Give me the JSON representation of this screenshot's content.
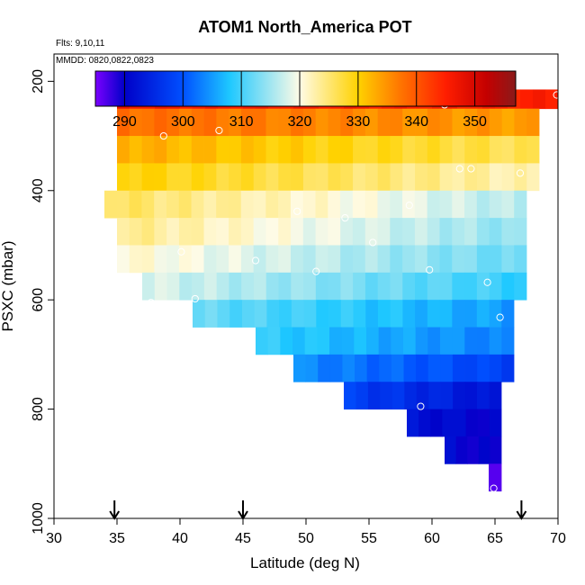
{
  "chart_data": {
    "type": "heatmap",
    "title": "ATOM1 North_America POT",
    "flights_note": "Flts: 9,10,11",
    "dates_note": "MMDD: 0820,0822,0823",
    "xlabel": "Latitude (deg N)",
    "ylabel": "PSXC (mbar)",
    "xlim": [
      30,
      70
    ],
    "ylim": [
      1000,
      150
    ],
    "y_reversed": true,
    "grid": false,
    "x_ticks": [
      "30",
      "35",
      "40",
      "45",
      "50",
      "55",
      "60",
      "65",
      "70"
    ],
    "y_ticks": [
      "200",
      "400",
      "600",
      "800",
      "1000"
    ],
    "colorbar": {
      "range": [
        285,
        357
      ],
      "ticks": [
        "290",
        "300",
        "310",
        "320",
        "330",
        "340",
        "350"
      ],
      "colors": [
        "#7b00ff",
        "#0000c8",
        "#0050ff",
        "#1ec8ff",
        "#fffbe6",
        "#ffd200",
        "#ff7800",
        "#ff1e00",
        "#c40000",
        "#8b1a1a"
      ],
      "color_stops": [
        285,
        290,
        300,
        308,
        320,
        330,
        337,
        345,
        352,
        357
      ]
    },
    "arrow_latitudes": [
      34.8,
      45.0,
      67.1
    ],
    "rows": [
      {
        "p_top": 185,
        "p_bot": 215,
        "lat_start": 35,
        "lat_end": 52,
        "v_start": 353,
        "v_end": 343
      },
      {
        "p_top": 215,
        "p_bot": 250,
        "lat_start": 35,
        "lat_end": 70,
        "v_start": 347,
        "v_end": 345
      },
      {
        "p_top": 250,
        "p_bot": 300,
        "lat_start": 35,
        "lat_end": 68.5,
        "v_start": 338,
        "v_end": 334
      },
      {
        "p_top": 300,
        "p_bot": 350,
        "lat_start": 35,
        "lat_end": 68.5,
        "v_start": 333,
        "v_end": 326
      },
      {
        "p_top": 350,
        "p_bot": 400,
        "lat_start": 35,
        "lat_end": 68.5,
        "v_start": 330,
        "v_end": 322
      },
      {
        "p_top": 400,
        "p_bot": 450,
        "lat_start": 34,
        "lat_end": 67.5,
        "v_start": 326,
        "v_end": 316
      },
      {
        "p_top": 450,
        "p_bot": 500,
        "lat_start": 35,
        "lat_end": 67.5,
        "v_start": 324,
        "v_end": 314
      },
      {
        "p_top": 500,
        "p_bot": 550,
        "lat_start": 35,
        "lat_end": 67.5,
        "v_start": 321,
        "v_end": 312
      },
      {
        "p_top": 550,
        "p_bot": 600,
        "lat_start": 37,
        "lat_end": 67.5,
        "v_start": 318,
        "v_end": 309
      },
      {
        "p_top": 600,
        "p_bot": 650,
        "lat_start": 41,
        "lat_end": 66.5,
        "v_start": 312,
        "v_end": 305
      },
      {
        "p_top": 650,
        "p_bot": 700,
        "lat_start": 46,
        "lat_end": 66.5,
        "v_start": 309,
        "v_end": 303
      },
      {
        "p_top": 700,
        "p_bot": 750,
        "lat_start": 49,
        "lat_end": 66.5,
        "v_start": 304,
        "v_end": 298
      },
      {
        "p_top": 750,
        "p_bot": 800,
        "lat_start": 53,
        "lat_end": 65.5,
        "v_start": 298,
        "v_end": 292
      },
      {
        "p_top": 800,
        "p_bot": 850,
        "lat_start": 58,
        "lat_end": 65.5,
        "v_start": 292,
        "v_end": 290
      },
      {
        "p_top": 850,
        "p_bot": 900,
        "lat_start": 61,
        "lat_end": 65.5,
        "v_start": 291,
        "v_end": 289
      },
      {
        "p_top": 900,
        "p_bot": 950,
        "lat_start": 64.5,
        "lat_end": 65.5,
        "v_start": 286,
        "v_end": 286
      }
    ],
    "points": [
      {
        "lat": 35.6,
        "p": 200
      },
      {
        "lat": 36.2,
        "p": 190
      },
      {
        "lat": 36.6,
        "p": 190
      },
      {
        "lat": 37.1,
        "p": 198
      },
      {
        "lat": 36.9,
        "p": 210
      },
      {
        "lat": 37.0,
        "p": 218
      },
      {
        "lat": 35.3,
        "p": 228
      },
      {
        "lat": 47.4,
        "p": 210
      },
      {
        "lat": 51.8,
        "p": 208
      },
      {
        "lat": 56.7,
        "p": 228
      },
      {
        "lat": 61.0,
        "p": 243
      },
      {
        "lat": 69.9,
        "p": 225
      },
      {
        "lat": 43.1,
        "p": 290
      },
      {
        "lat": 38.7,
        "p": 300
      },
      {
        "lat": 62.2,
        "p": 360
      },
      {
        "lat": 63.1,
        "p": 360
      },
      {
        "lat": 67.0,
        "p": 368
      },
      {
        "lat": 58.2,
        "p": 427
      },
      {
        "lat": 49.3,
        "p": 438
      },
      {
        "lat": 53.1,
        "p": 450
      },
      {
        "lat": 55.3,
        "p": 495
      },
      {
        "lat": 40.1,
        "p": 512
      },
      {
        "lat": 46.0,
        "p": 528
      },
      {
        "lat": 50.8,
        "p": 548
      },
      {
        "lat": 59.8,
        "p": 545
      },
      {
        "lat": 64.4,
        "p": 568
      },
      {
        "lat": 41.2,
        "p": 598
      },
      {
        "lat": 37.7,
        "p": 605
      },
      {
        "lat": 65.4,
        "p": 632
      },
      {
        "lat": 59.1,
        "p": 795
      },
      {
        "lat": 64.9,
        "p": 945
      }
    ]
  }
}
